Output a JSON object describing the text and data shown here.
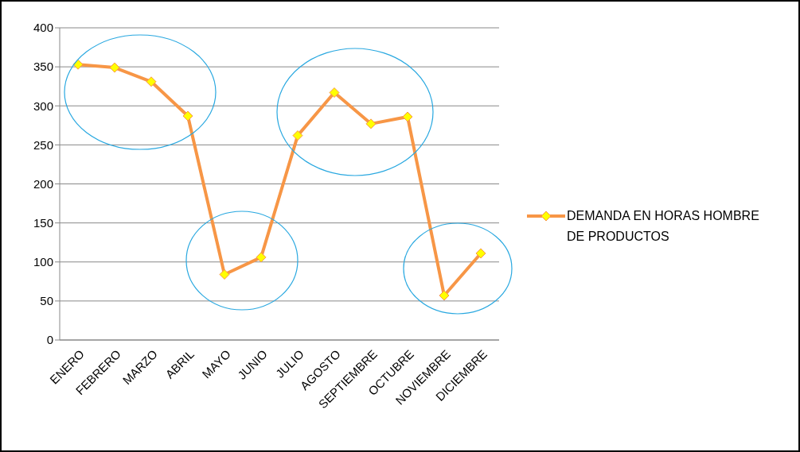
{
  "chart_data": {
    "type": "line",
    "categories": [
      "ENERO",
      "FEBRERO",
      "MARZO",
      "ABRIL",
      "MAYO",
      "JUNIO",
      "JULIO",
      "AGOSTO",
      "SEPTIEMBRE",
      "OCTUBRE",
      "NOVIEMBRE",
      "DICIEMBRE"
    ],
    "series": [
      {
        "name": "DEMANDA EN HORAS HOMBRE  DE PRODUCTOS",
        "color": "#f79646",
        "values": [
          353,
          349,
          331,
          287,
          84,
          106,
          262,
          317,
          277,
          286,
          57,
          111
        ]
      }
    ],
    "ylim": [
      0,
      400
    ],
    "yticks": [
      0,
      50,
      100,
      150,
      200,
      250,
      300,
      350,
      400
    ],
    "grid": "y",
    "legend": "right",
    "marker": "diamond",
    "line_style": "solid"
  }
}
